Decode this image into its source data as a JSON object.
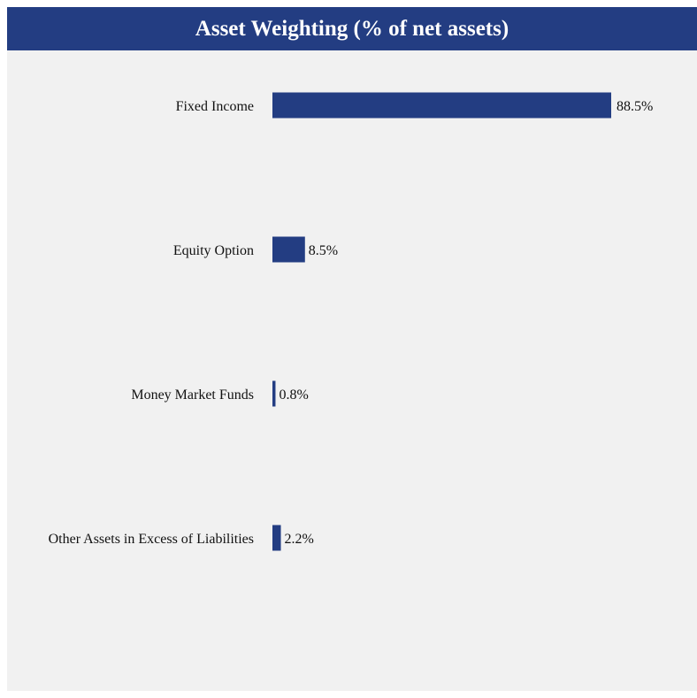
{
  "chart_data": {
    "type": "bar",
    "orientation": "horizontal",
    "title": "Asset Weighting (% of net assets)",
    "categories": [
      "Fixed Income",
      "Equity Option",
      "Money Market Funds",
      "Other Assets in Excess of Liabilities"
    ],
    "values": [
      88.5,
      8.5,
      0.8,
      2.2
    ],
    "value_labels": [
      "88.5%",
      "8.5%",
      "0.8%",
      "2.2%"
    ],
    "unit": "%",
    "grid": false,
    "legend": "none",
    "colors": {
      "bar": "#233d82",
      "title_background": "#233d82",
      "title_text": "#ffffff",
      "plot_background": "#f1f1f1"
    }
  }
}
